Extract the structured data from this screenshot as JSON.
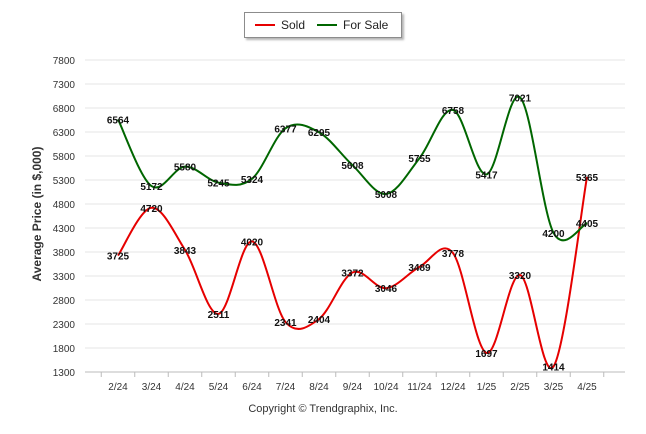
{
  "chart_data": {
    "type": "line",
    "categories": [
      "2/24",
      "3/24",
      "4/24",
      "5/24",
      "6/24",
      "7/24",
      "8/24",
      "9/24",
      "10/24",
      "11/24",
      "12/24",
      "1/25",
      "2/25",
      "3/25",
      "4/25"
    ],
    "series": [
      {
        "name": "Sold",
        "color": "#e60000",
        "values": [
          3725,
          4720,
          3843,
          2511,
          4020,
          2341,
          2404,
          3372,
          3046,
          3489,
          3778,
          1697,
          3320,
          1414,
          5365
        ]
      },
      {
        "name": "For Sale",
        "color": "#006600",
        "values": [
          6564,
          5172,
          5580,
          5245,
          5324,
          6377,
          6295,
          5608,
          5008,
          5755,
          6758,
          5417,
          7021,
          4200,
          4405
        ]
      }
    ],
    "ylabel": "Average Price (in $,000)",
    "xlabel": "",
    "ylim": [
      1300,
      7800
    ],
    "yticks": [
      1300,
      1800,
      2300,
      2800,
      3300,
      3800,
      4300,
      4800,
      5300,
      5800,
      6300,
      6800,
      7300,
      7800
    ],
    "grid": true,
    "legend_position": "top-center"
  },
  "legend": {
    "sold": "Sold",
    "for_sale": "For Sale"
  },
  "footer": {
    "copyright": "Copyright © Trendgraphix, Inc."
  }
}
